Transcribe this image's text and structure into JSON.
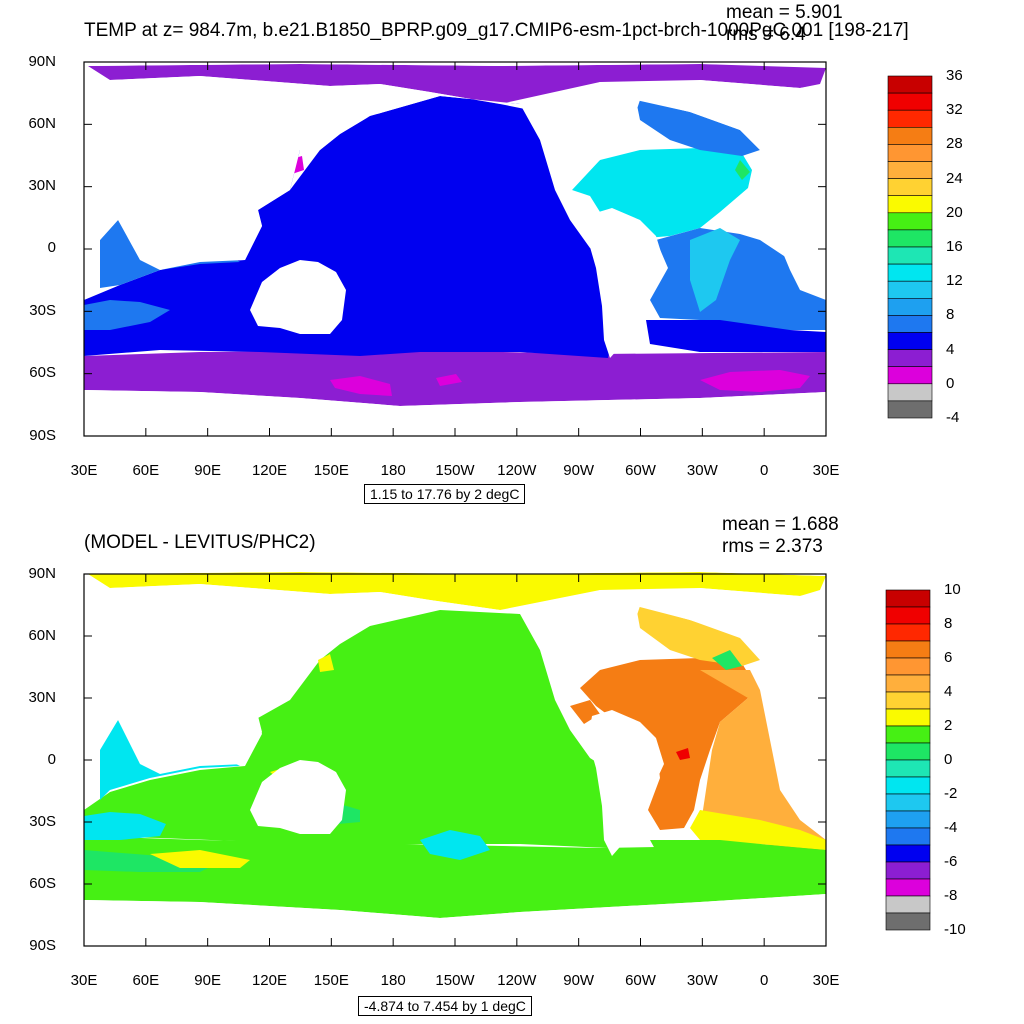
{
  "colors": {
    "land": "#ffffff",
    "temp_scale": [
      "#6e6e6e",
      "#c8c8c8",
      "#dc00dc",
      "#8c1ed2",
      "#0000f0",
      "#1e78f0",
      "#1ea0f0",
      "#1ec8f0",
      "#00e6f0",
      "#1ee6b4",
      "#1ee664",
      "#46f014",
      "#fafa00",
      "#ffd232",
      "#ffaf3c",
      "#ff9632",
      "#f57d14",
      "#ff2800",
      "#f00000",
      "#c80000"
    ],
    "anom_scale": [
      "#6e6e6e",
      "#c8c8c8",
      "#dc00dc",
      "#8c1ed2",
      "#0000f0",
      "#1e78f0",
      "#1ea0f0",
      "#1ec8f0",
      "#00e6f0",
      "#1ee6b4",
      "#1ee664",
      "#46f014",
      "#fafa00",
      "#ffd232",
      "#ffaf3c",
      "#ff9632",
      "#f57d14",
      "#ff2800",
      "#f00000",
      "#c80000"
    ]
  },
  "top_panel": {
    "title": "TEMP at z= 984.7m, b.e21.B1850_BPRP.g09_g17.CMIP6-esm-1pct-brch-1000PgC.001 [198-217]",
    "mean": "mean = 5.901",
    "rms": "rms = 6.4",
    "lat_labels": [
      "90N",
      "60N",
      "30N",
      "0",
      "30S",
      "60S",
      "90S"
    ],
    "lon_labels": [
      "30E",
      "60E",
      "90E",
      "120E",
      "150E",
      "180",
      "150W",
      "120W",
      "90W",
      "60W",
      "30W",
      "0",
      "30E"
    ],
    "colorbar_labels": [
      "36",
      "32",
      "28",
      "24",
      "20",
      "16",
      "12",
      "8",
      "4",
      "0",
      "-4"
    ],
    "contour_info": "1.15 to 17.76 by 2 degC"
  },
  "bottom_panel": {
    "title": "(MODEL - LEVITUS/PHC2)",
    "mean": "mean = 1.688",
    "rms": "rms = 2.373",
    "lat_labels": [
      "90N",
      "60N",
      "30N",
      "0",
      "30S",
      "60S",
      "90S"
    ],
    "lon_labels": [
      "30E",
      "60E",
      "90E",
      "120E",
      "150E",
      "180",
      "150W",
      "120W",
      "90W",
      "60W",
      "30W",
      "0",
      "30E"
    ],
    "colorbar_labels": [
      "10",
      "8",
      "6",
      "4",
      "2",
      "0",
      "-2",
      "-4",
      "-6",
      "-8",
      "-10"
    ],
    "contour_info": "-4.874 to 7.454 by 1 degC"
  }
}
